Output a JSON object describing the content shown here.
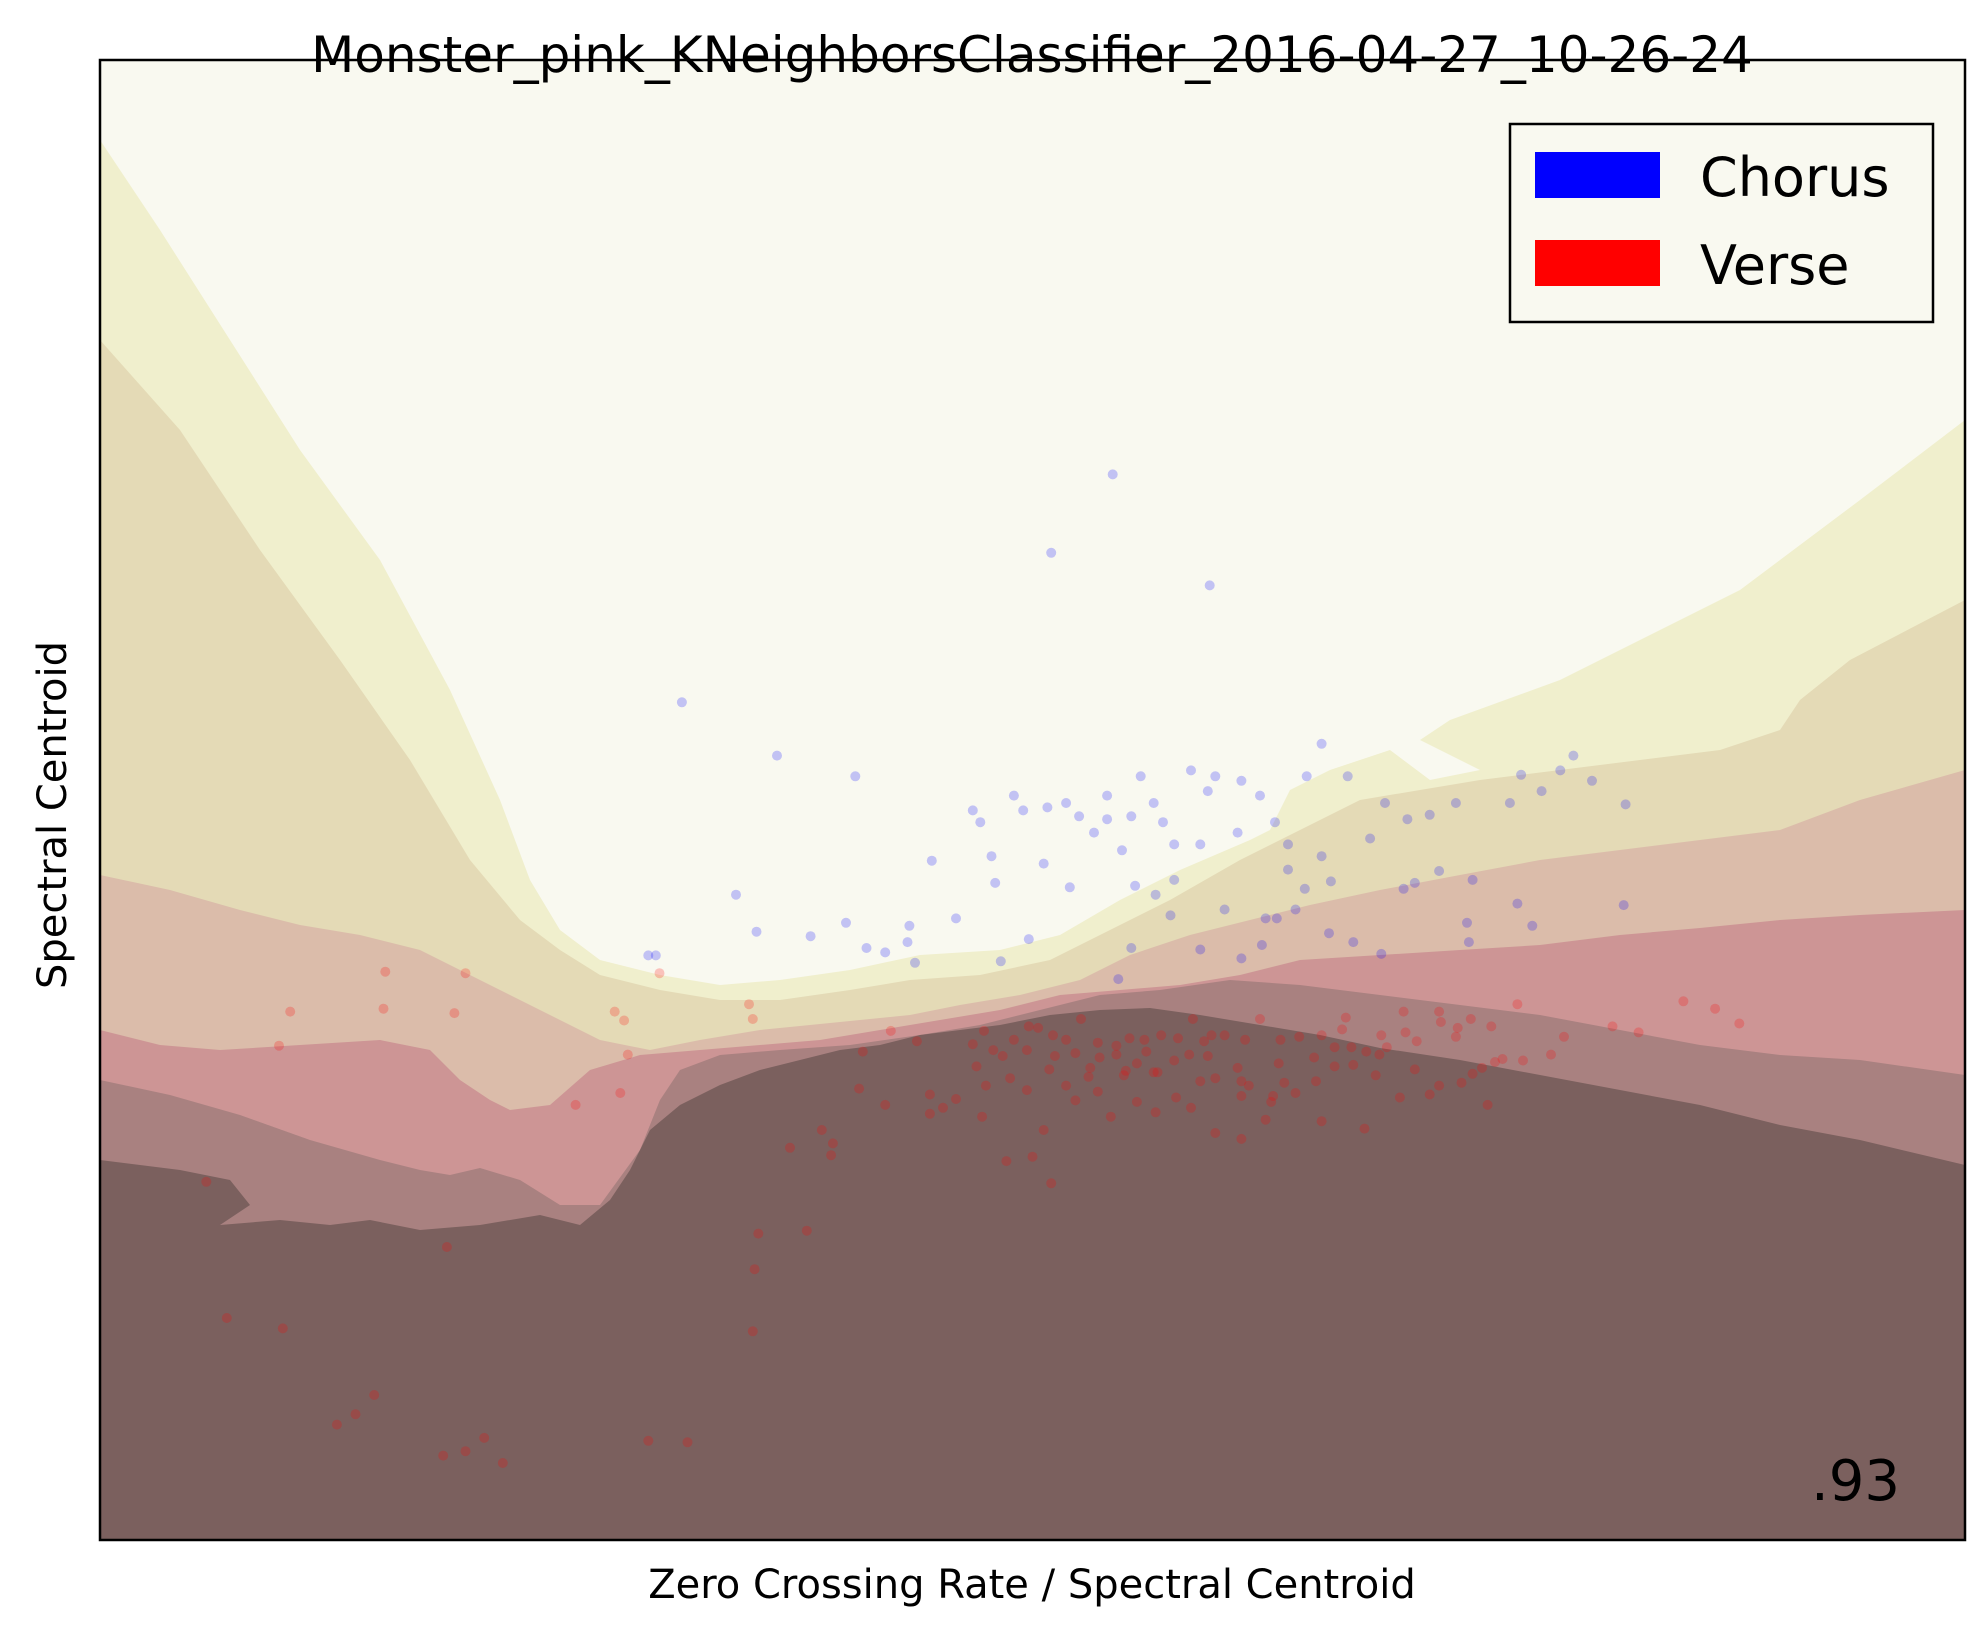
{
  "chart_data": {
    "type": "scatter",
    "title": "Monster_pink_KNeighborsClassifier_2016-04-27_10-26-24",
    "xlabel": "Zero Crossing Rate / Spectral Centroid",
    "ylabel": "Spectral Centroid",
    "score": ".93",
    "xlim": [
      0,
      1
    ],
    "ylim": [
      0,
      1
    ],
    "x_ticks": "none",
    "y_ticks": "none",
    "legend_position": "top-right",
    "legend": [
      {
        "label": "Chorus",
        "color": "#0000ff"
      },
      {
        "label": "Verse",
        "color": "#ff0000"
      }
    ],
    "background": {
      "description": "decision-probability contours",
      "colors": [
        "#f9f9f0",
        "#f0efcd",
        "#e4dab6",
        "#dbbcaa",
        "#cd9595",
        "#a98180",
        "#7b605e"
      ]
    },
    "series": [
      {
        "name": "Chorus",
        "color": "#0000ff",
        "points": [
          [
            0.543,
            0.72
          ],
          [
            0.51,
            0.667
          ],
          [
            0.595,
            0.645
          ],
          [
            0.405,
            0.516
          ],
          [
            0.312,
            0.566
          ],
          [
            0.363,
            0.53
          ],
          [
            0.437,
            0.39
          ],
          [
            0.341,
            0.436
          ],
          [
            0.352,
            0.411
          ],
          [
            0.411,
            0.4
          ],
          [
            0.421,
            0.397
          ],
          [
            0.433,
            0.404
          ],
          [
            0.446,
            0.459
          ],
          [
            0.468,
            0.493
          ],
          [
            0.472,
            0.485
          ],
          [
            0.478,
            0.462
          ],
          [
            0.49,
            0.503
          ],
          [
            0.495,
            0.493
          ],
          [
            0.508,
            0.495
          ],
          [
            0.518,
            0.498
          ],
          [
            0.525,
            0.489
          ],
          [
            0.533,
            0.478
          ],
          [
            0.54,
            0.503
          ],
          [
            0.548,
            0.466
          ],
          [
            0.553,
            0.489
          ],
          [
            0.558,
            0.516
          ],
          [
            0.565,
            0.498
          ],
          [
            0.57,
            0.485
          ],
          [
            0.576,
            0.47
          ],
          [
            0.585,
            0.52
          ],
          [
            0.59,
            0.47
          ],
          [
            0.594,
            0.506
          ],
          [
            0.598,
            0.516
          ],
          [
            0.61,
            0.478
          ],
          [
            0.612,
            0.513
          ],
          [
            0.622,
            0.503
          ],
          [
            0.63,
            0.485
          ],
          [
            0.637,
            0.47
          ],
          [
            0.647,
            0.516
          ],
          [
            0.655,
            0.462
          ],
          [
            0.66,
            0.445
          ],
          [
            0.655,
            0.538
          ],
          [
            0.669,
            0.516
          ],
          [
            0.681,
            0.474
          ],
          [
            0.689,
            0.498
          ],
          [
            0.701,
            0.487
          ],
          [
            0.713,
            0.49
          ],
          [
            0.727,
            0.498
          ],
          [
            0.736,
            0.446
          ],
          [
            0.756,
            0.498
          ],
          [
            0.783,
            0.52
          ],
          [
            0.79,
            0.53
          ],
          [
            0.8,
            0.513
          ],
          [
            0.817,
            0.429
          ],
          [
            0.762,
            0.517
          ],
          [
            0.773,
            0.506
          ],
          [
            0.818,
            0.497
          ],
          [
            0.612,
            0.393
          ],
          [
            0.687,
            0.396
          ],
          [
            0.733,
            0.417
          ],
          [
            0.623,
            0.402
          ],
          [
            0.553,
            0.4
          ],
          [
            0.546,
            0.379
          ],
          [
            0.498,
            0.406
          ],
          [
            0.48,
            0.444
          ],
          [
            0.459,
            0.42
          ],
          [
            0.434,
            0.415
          ],
          [
            0.506,
            0.457
          ],
          [
            0.52,
            0.441
          ],
          [
            0.566,
            0.436
          ],
          [
            0.576,
            0.446
          ],
          [
            0.603,
            0.426
          ],
          [
            0.631,
            0.42
          ],
          [
            0.646,
            0.44
          ],
          [
            0.659,
            0.41
          ],
          [
            0.672,
            0.404
          ],
          [
            0.699,
            0.44
          ],
          [
            0.734,
            0.404
          ],
          [
            0.76,
            0.43
          ],
          [
            0.768,
            0.415
          ],
          [
            0.555,
            0.442
          ],
          [
            0.574,
            0.422
          ],
          [
            0.59,
            0.399
          ],
          [
            0.625,
            0.42
          ],
          [
            0.483,
            0.391
          ],
          [
            0.381,
            0.408
          ],
          [
            0.298,
            0.395
          ],
          [
            0.294,
            0.395
          ],
          [
            0.4,
            0.417
          ],
          [
            0.641,
            0.426
          ],
          [
            0.718,
            0.452
          ],
          [
            0.705,
            0.444
          ],
          [
            0.54,
            0.487
          ],
          [
            0.637,
            0.453
          ]
        ]
      },
      {
        "name": "Verse",
        "color": "#ff0000",
        "points": [
          [
            0.057,
            0.242
          ],
          [
            0.068,
            0.15
          ],
          [
            0.098,
            0.143
          ],
          [
            0.127,
            0.078
          ],
          [
            0.137,
            0.085
          ],
          [
            0.147,
            0.098
          ],
          [
            0.186,
            0.198
          ],
          [
            0.184,
            0.057
          ],
          [
            0.196,
            0.06
          ],
          [
            0.206,
            0.069
          ],
          [
            0.216,
            0.052
          ],
          [
            0.294,
            0.067
          ],
          [
            0.315,
            0.066
          ],
          [
            0.351,
            0.183
          ],
          [
            0.353,
            0.207
          ],
          [
            0.35,
            0.141
          ],
          [
            0.379,
            0.209
          ],
          [
            0.392,
            0.26
          ],
          [
            0.407,
            0.305
          ],
          [
            0.421,
            0.294
          ],
          [
            0.445,
            0.301
          ],
          [
            0.468,
            0.335
          ],
          [
            0.479,
            0.331
          ],
          [
            0.49,
            0.338
          ],
          [
            0.497,
            0.331
          ],
          [
            0.511,
            0.341
          ],
          [
            0.523,
            0.329
          ],
          [
            0.535,
            0.336
          ],
          [
            0.545,
            0.334
          ],
          [
            0.552,
            0.339
          ],
          [
            0.56,
            0.338
          ],
          [
            0.569,
            0.341
          ],
          [
            0.578,
            0.339
          ],
          [
            0.584,
            0.328
          ],
          [
            0.592,
            0.337
          ],
          [
            0.596,
            0.341
          ],
          [
            0.603,
            0.341
          ],
          [
            0.614,
            0.338
          ],
          [
            0.622,
            0.352
          ],
          [
            0.633,
            0.338
          ],
          [
            0.643,
            0.34
          ],
          [
            0.655,
            0.341
          ],
          [
            0.662,
            0.333
          ],
          [
            0.668,
            0.353
          ],
          [
            0.679,
            0.33
          ],
          [
            0.686,
            0.328
          ],
          [
            0.699,
            0.357
          ],
          [
            0.706,
            0.337
          ],
          [
            0.719,
            0.35
          ],
          [
            0.728,
            0.346
          ],
          [
            0.735,
            0.352
          ],
          [
            0.746,
            0.347
          ],
          [
            0.752,
            0.325
          ],
          [
            0.76,
            0.362
          ],
          [
            0.778,
            0.328
          ],
          [
            0.785,
            0.34
          ],
          [
            0.811,
            0.347
          ],
          [
            0.825,
            0.343
          ],
          [
            0.849,
            0.364
          ],
          [
            0.866,
            0.359
          ],
          [
            0.879,
            0.349
          ],
          [
            0.47,
            0.32
          ],
          [
            0.488,
            0.312
          ],
          [
            0.509,
            0.318
          ],
          [
            0.531,
            0.319
          ],
          [
            0.55,
            0.317
          ],
          [
            0.565,
            0.316
          ],
          [
            0.59,
            0.31
          ],
          [
            0.612,
            0.31
          ],
          [
            0.629,
            0.3
          ],
          [
            0.641,
            0.302
          ],
          [
            0.652,
            0.31
          ],
          [
            0.662,
            0.32
          ],
          [
            0.672,
            0.321
          ],
          [
            0.684,
            0.314
          ],
          [
            0.705,
            0.318
          ],
          [
            0.718,
            0.307
          ],
          [
            0.73,
            0.309
          ],
          [
            0.744,
            0.294
          ],
          [
            0.506,
            0.277
          ],
          [
            0.542,
            0.286
          ],
          [
            0.577,
            0.299
          ],
          [
            0.598,
            0.275
          ],
          [
            0.612,
            0.271
          ],
          [
            0.625,
            0.284
          ],
          [
            0.655,
            0.283
          ],
          [
            0.678,
            0.278
          ],
          [
            0.697,
            0.299
          ],
          [
            0.713,
            0.301
          ],
          [
            0.736,
            0.315
          ],
          [
            0.748,
            0.323
          ],
          [
            0.763,
            0.324
          ],
          [
            0.387,
            0.277
          ],
          [
            0.37,
            0.265
          ],
          [
            0.393,
            0.268
          ],
          [
            0.409,
            0.33
          ],
          [
            0.459,
            0.298
          ],
          [
            0.475,
            0.307
          ],
          [
            0.497,
            0.304
          ],
          [
            0.518,
            0.307
          ],
          [
            0.535,
            0.303
          ],
          [
            0.556,
            0.296
          ],
          [
            0.566,
            0.289
          ],
          [
            0.585,
            0.292
          ],
          [
            0.612,
            0.3
          ],
          [
            0.628,
            0.296
          ],
          [
            0.518,
            0.338
          ],
          [
            0.536,
            0.326
          ],
          [
            0.545,
            0.328
          ],
          [
            0.556,
            0.322
          ],
          [
            0.567,
            0.316
          ],
          [
            0.594,
            0.327
          ],
          [
            0.61,
            0.319
          ],
          [
            0.632,
            0.322
          ],
          [
            0.651,
            0.326
          ],
          [
            0.671,
            0.333
          ],
          [
            0.69,
            0.333
          ],
          [
            0.727,
            0.34
          ],
          [
            0.741,
            0.319
          ],
          [
            0.096,
            0.334
          ],
          [
            0.102,
            0.357
          ],
          [
            0.152,
            0.359
          ],
          [
            0.153,
            0.384
          ],
          [
            0.19,
            0.356
          ],
          [
            0.196,
            0.383
          ],
          [
            0.255,
            0.294
          ],
          [
            0.279,
            0.302
          ],
          [
            0.276,
            0.357
          ],
          [
            0.3,
            0.383
          ],
          [
            0.281,
            0.351
          ],
          [
            0.283,
            0.328
          ],
          [
            0.348,
            0.362
          ],
          [
            0.35,
            0.352
          ],
          [
            0.424,
            0.344
          ],
          [
            0.438,
            0.337
          ],
          [
            0.473,
            0.286
          ],
          [
            0.486,
            0.256
          ],
          [
            0.5,
            0.259
          ],
          [
            0.51,
            0.241
          ],
          [
            0.523,
            0.297
          ],
          [
            0.526,
            0.352
          ],
          [
            0.586,
            0.352
          ],
          [
            0.503,
            0.346
          ],
          [
            0.445,
            0.288
          ],
          [
            0.452,
            0.292
          ],
          [
            0.474,
            0.344
          ],
          [
            0.484,
            0.327
          ],
          [
            0.498,
            0.347
          ],
          [
            0.512,
            0.327
          ],
          [
            0.53,
            0.313
          ],
          [
            0.549,
            0.314
          ],
          [
            0.561,
            0.33
          ],
          [
            0.576,
            0.324
          ],
          [
            0.598,
            0.312
          ],
          [
            0.616,
            0.307
          ],
          [
            0.635,
            0.309
          ],
          [
            0.666,
            0.345
          ],
          [
            0.687,
            0.341
          ],
          [
            0.7,
            0.343
          ],
          [
            0.718,
            0.357
          ]
        ]
      }
    ]
  }
}
